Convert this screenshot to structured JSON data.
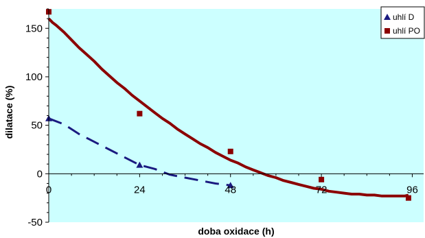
{
  "chart_data": {
    "type": "scatter",
    "title": "",
    "xlabel": "doba oxidace (h)",
    "ylabel": "dilatace (%)",
    "xlim": [
      0,
      99
    ],
    "ylim": [
      -50,
      170
    ],
    "x_ticks": [
      0,
      24,
      48,
      72,
      96
    ],
    "y_ticks": [
      -50,
      0,
      50,
      100,
      150
    ],
    "background_color": "#ccffff",
    "legend_position": "top-right",
    "series": [
      {
        "name": "uhlí D",
        "marker": "triangle",
        "color": "#1a1a80",
        "x": [
          0,
          24,
          48
        ],
        "y": [
          57,
          9,
          -12
        ],
        "trendline": {
          "style": "dashed",
          "x": [
            0,
            4,
            8,
            12,
            16,
            20,
            24,
            28,
            32,
            36,
            40,
            44,
            48
          ],
          "y": [
            57,
            51,
            41,
            33,
            25,
            17,
            9,
            5,
            -1,
            -4,
            -7,
            -10,
            -12
          ]
        }
      },
      {
        "name": "uhlí PO",
        "marker": "square",
        "color": "#8b0000",
        "x": [
          0,
          24,
          48,
          72,
          95
        ],
        "y": [
          167,
          62,
          23,
          -6,
          -25
        ],
        "trendline": {
          "style": "solid",
          "x": [
            0,
            1,
            2,
            4,
            6,
            8,
            10,
            12,
            14,
            16,
            18,
            20,
            22,
            24,
            26,
            28,
            30,
            32,
            34,
            36,
            38,
            40,
            42,
            44,
            46,
            48,
            50,
            52,
            54,
            56,
            58,
            60,
            62,
            64,
            66,
            68,
            70,
            72,
            74,
            76,
            78,
            80,
            82,
            84,
            86,
            88,
            90,
            92,
            94,
            95
          ],
          "y": [
            160,
            156,
            153,
            146,
            138,
            130,
            123,
            116,
            108,
            101,
            94,
            88,
            81,
            75,
            69,
            63,
            57,
            52,
            46,
            41,
            36,
            31,
            27,
            22,
            18,
            14,
            11,
            7,
            4,
            1,
            -2,
            -4,
            -7,
            -9,
            -11,
            -13,
            -15,
            -16,
            -18,
            -19,
            -20,
            -21,
            -21,
            -22,
            -22,
            -23,
            -23,
            -23,
            -23,
            -22
          ]
        }
      }
    ]
  }
}
